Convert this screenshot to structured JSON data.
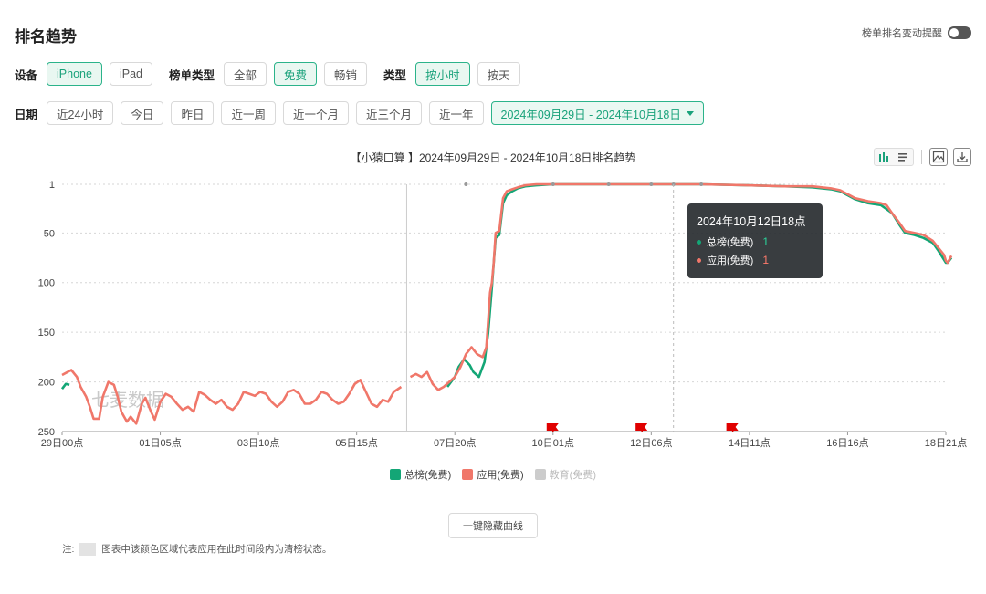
{
  "page": {
    "title": "排名趋势"
  },
  "alert": {
    "label": "榜单排名变动提醒",
    "enabled": false
  },
  "filters": {
    "device": {
      "label": "设备",
      "options": [
        "iPhone",
        "iPad"
      ],
      "selected": "iPhone"
    },
    "list_type": {
      "label": "榜单类型",
      "options": [
        "全部",
        "免费",
        "畅销"
      ],
      "selected": "免费"
    },
    "type": {
      "label": "类型",
      "options": [
        "按小时",
        "按天"
      ],
      "selected": "按小时"
    },
    "date": {
      "label": "日期",
      "options": [
        "近24小时",
        "今日",
        "昨日",
        "近一周",
        "近一个月",
        "近三个月",
        "近一年"
      ],
      "range_label": "2024年09月29日 - 2024年10月18日"
    }
  },
  "toolbar": {
    "icons": [
      "bar-chart-icon",
      "list-icon",
      "image-icon",
      "download-icon"
    ]
  },
  "tooltip": {
    "title": "2024年10月12日18点",
    "rows": [
      {
        "name": "总榜(免费)",
        "value": "1",
        "color": "#13a676"
      },
      {
        "name": "应用(免费)",
        "value": "1",
        "color": "#f0776a"
      }
    ]
  },
  "watermark": "七麦数据",
  "hide_button": "一键隐藏曲线",
  "note": {
    "prefix": "注:",
    "text": "图表中该颜色区域代表应用在此时间段内为清榜状态。"
  },
  "colors": {
    "accent": "#1aa27b",
    "series_total": "#13a676",
    "series_app": "#f0776a",
    "series_edu": "#cccccc"
  },
  "chart_data": {
    "type": "line",
    "title": "【小猿口算 】2024年09月29日 - 2024年10月18日排名趋势",
    "x_ticks": [
      "29日00点",
      "01日05点",
      "03日10点",
      "05日15点",
      "07日20点",
      "10日01点",
      "12日06点",
      "14日11点",
      "16日16点",
      "18日21点"
    ],
    "x_tick_hours": [
      0,
      53,
      106,
      159,
      212,
      265,
      318,
      371,
      424,
      477
    ],
    "x_range_hours": [
      0,
      477
    ],
    "y_ticks": [
      1,
      50,
      100,
      150,
      200,
      250
    ],
    "ylim": [
      1,
      250
    ],
    "y_inverted": true,
    "grid": true,
    "legend_position": "bottom",
    "markers": [
      {
        "type": "flag",
        "x_hour": 265
      },
      {
        "type": "flag",
        "x_hour": 313
      },
      {
        "type": "flag",
        "x_hour": 362
      }
    ],
    "crosshair_hours": [
      186,
      330
    ],
    "series": [
      {
        "name": "总榜(免费)",
        "color": "#13a676",
        "points": [
          [
            0,
            207
          ],
          [
            2,
            202
          ],
          [
            4,
            203
          ],
          [
            186,
            null
          ],
          [
            208,
            205
          ],
          [
            212,
            195
          ],
          [
            214,
            185
          ],
          [
            217,
            177
          ],
          [
            220,
            183
          ],
          [
            222,
            190
          ],
          [
            225,
            195
          ],
          [
            228,
            180
          ],
          [
            230,
            150
          ],
          [
            232,
            105
          ],
          [
            233,
            80
          ],
          [
            234,
            55
          ],
          [
            236,
            52
          ],
          [
            238,
            20
          ],
          [
            240,
            12
          ],
          [
            243,
            8
          ],
          [
            246,
            5
          ],
          [
            250,
            3
          ],
          [
            256,
            2
          ],
          [
            265,
            1
          ],
          [
            280,
            1
          ],
          [
            300,
            1
          ],
          [
            318,
            1
          ],
          [
            330,
            1
          ],
          [
            345,
            1
          ],
          [
            370,
            2
          ],
          [
            390,
            3
          ],
          [
            405,
            4
          ],
          [
            415,
            6
          ],
          [
            420,
            8
          ],
          [
            428,
            16
          ],
          [
            435,
            20
          ],
          [
            442,
            22
          ],
          [
            445,
            26
          ],
          [
            448,
            30
          ],
          [
            452,
            42
          ],
          [
            455,
            50
          ],
          [
            460,
            52
          ],
          [
            465,
            55
          ],
          [
            470,
            60
          ],
          [
            473,
            68
          ],
          [
            476,
            77
          ],
          [
            477,
            80
          ],
          [
            478,
            80
          ],
          [
            480,
            75
          ]
        ]
      },
      {
        "name": "应用(免费)",
        "color": "#f0776a",
        "points": [
          [
            0,
            193
          ],
          [
            3,
            190
          ],
          [
            5,
            188
          ],
          [
            8,
            195
          ],
          [
            10,
            205
          ],
          [
            13,
            215
          ],
          [
            15,
            225
          ],
          [
            17,
            237
          ],
          [
            20,
            237
          ],
          [
            22,
            215
          ],
          [
            25,
            200
          ],
          [
            28,
            203
          ],
          [
            30,
            215
          ],
          [
            32,
            230
          ],
          [
            35,
            240
          ],
          [
            37,
            235
          ],
          [
            40,
            242
          ],
          [
            43,
            222
          ],
          [
            45,
            216
          ],
          [
            48,
            230
          ],
          [
            50,
            238
          ],
          [
            53,
            220
          ],
          [
            56,
            212
          ],
          [
            59,
            215
          ],
          [
            62,
            222
          ],
          [
            65,
            228
          ],
          [
            68,
            225
          ],
          [
            71,
            230
          ],
          [
            74,
            210
          ],
          [
            77,
            213
          ],
          [
            80,
            218
          ],
          [
            83,
            222
          ],
          [
            86,
            218
          ],
          [
            89,
            225
          ],
          [
            92,
            228
          ],
          [
            95,
            222
          ],
          [
            98,
            210
          ],
          [
            101,
            212
          ],
          [
            104,
            214
          ],
          [
            107,
            210
          ],
          [
            110,
            212
          ],
          [
            113,
            220
          ],
          [
            116,
            225
          ],
          [
            119,
            220
          ],
          [
            122,
            210
          ],
          [
            125,
            208
          ],
          [
            128,
            212
          ],
          [
            131,
            222
          ],
          [
            134,
            222
          ],
          [
            137,
            218
          ],
          [
            140,
            210
          ],
          [
            143,
            212
          ],
          [
            146,
            218
          ],
          [
            149,
            222
          ],
          [
            152,
            220
          ],
          [
            155,
            212
          ],
          [
            158,
            202
          ],
          [
            161,
            198
          ],
          [
            164,
            210
          ],
          [
            167,
            222
          ],
          [
            170,
            225
          ],
          [
            173,
            218
          ],
          [
            176,
            220
          ],
          [
            179,
            210
          ],
          [
            183,
            205
          ],
          [
            186,
            null
          ],
          [
            188,
            195
          ],
          [
            191,
            192
          ],
          [
            194,
            195
          ],
          [
            197,
            190
          ],
          [
            200,
            202
          ],
          [
            203,
            208
          ],
          [
            206,
            205
          ],
          [
            209,
            200
          ],
          [
            212,
            195
          ],
          [
            215,
            185
          ],
          [
            218,
            172
          ],
          [
            221,
            165
          ],
          [
            224,
            172
          ],
          [
            227,
            175
          ],
          [
            229,
            165
          ],
          [
            231,
            110
          ],
          [
            232,
            100
          ],
          [
            233,
            80
          ],
          [
            234,
            50
          ],
          [
            236,
            48
          ],
          [
            238,
            15
          ],
          [
            240,
            8
          ],
          [
            243,
            6
          ],
          [
            246,
            4
          ],
          [
            250,
            2
          ],
          [
            256,
            1
          ],
          [
            265,
            1
          ],
          [
            280,
            1
          ],
          [
            300,
            1
          ],
          [
            318,
            1
          ],
          [
            330,
            1
          ],
          [
            345,
            1
          ],
          [
            370,
            2
          ],
          [
            390,
            3
          ],
          [
            405,
            3
          ],
          [
            415,
            5
          ],
          [
            420,
            7
          ],
          [
            428,
            15
          ],
          [
            435,
            18
          ],
          [
            442,
            20
          ],
          [
            445,
            22
          ],
          [
            448,
            30
          ],
          [
            452,
            40
          ],
          [
            455,
            48
          ],
          [
            460,
            50
          ],
          [
            465,
            52
          ],
          [
            470,
            58
          ],
          [
            473,
            65
          ],
          [
            476,
            72
          ],
          [
            477,
            78
          ],
          [
            478,
            80
          ],
          [
            480,
            73
          ]
        ]
      }
    ]
  }
}
